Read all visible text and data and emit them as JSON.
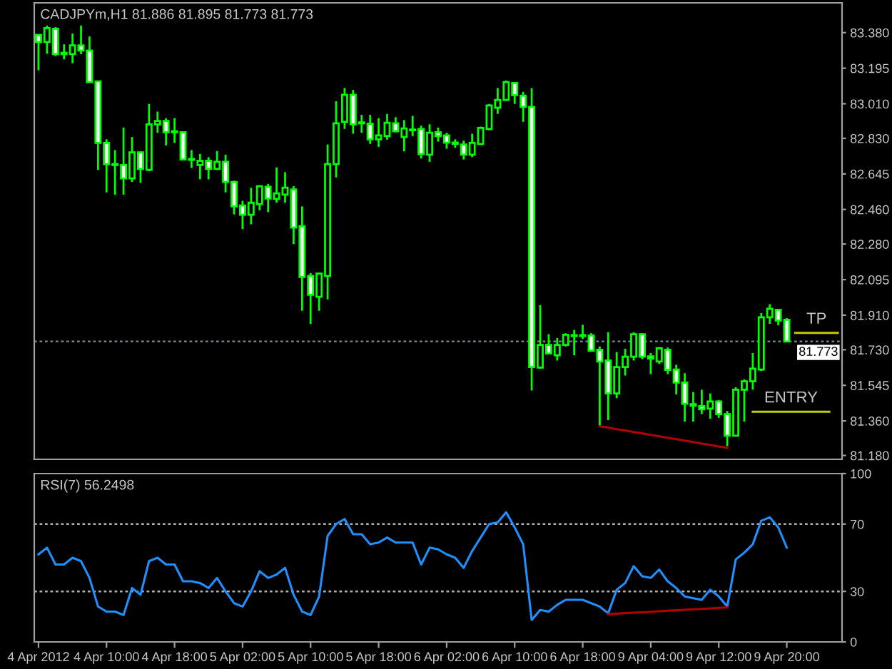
{
  "chart_data": [
    {
      "type": "candlestick",
      "title": "CADJPYm,H1 81.886 81.895 81.773 81.773",
      "categories": [
        null,
        null,
        null,
        null,
        null,
        null,
        null,
        null,
        null,
        null,
        null,
        null,
        null,
        null,
        null,
        null,
        null,
        null,
        null,
        null,
        null,
        null,
        null,
        null,
        null,
        null,
        null,
        null,
        null,
        null,
        null,
        null,
        null,
        null,
        null,
        null,
        null,
        null,
        null,
        null,
        null,
        null,
        null,
        null,
        null,
        null,
        null,
        null,
        null,
        null,
        null,
        null,
        null,
        null,
        null,
        null,
        null,
        null,
        null,
        null,
        null,
        null,
        null,
        null,
        null,
        null,
        null,
        null,
        null,
        null,
        null,
        null,
        null,
        null,
        null,
        null,
        null,
        null,
        null,
        null,
        null,
        null,
        null,
        null,
        null,
        null,
        null,
        null,
        null,
        null,
        null,
        null,
        null,
        null,
        null
      ],
      "ohlc": [
        [
          83.368,
          83.37,
          83.184,
          83.331
        ],
        [
          83.331,
          83.417,
          83.27,
          83.404
        ],
        [
          83.4,
          83.409,
          83.258,
          83.268
        ],
        [
          83.275,
          83.319,
          83.241,
          83.268
        ],
        [
          83.268,
          83.375,
          83.221,
          83.314
        ],
        [
          83.314,
          83.417,
          83.268,
          83.287
        ],
        [
          83.287,
          83.36,
          83.123,
          83.123
        ],
        [
          83.126,
          83.131,
          82.666,
          82.806
        ],
        [
          82.806,
          82.825,
          82.549,
          82.696
        ],
        [
          82.696,
          82.769,
          82.537,
          82.691
        ],
        [
          82.691,
          82.886,
          82.537,
          82.622
        ],
        [
          82.622,
          82.837,
          82.603,
          82.757
        ],
        [
          82.757,
          82.762,
          82.598,
          82.671
        ],
        [
          82.666,
          83.009,
          82.659,
          82.903
        ],
        [
          82.903,
          82.969,
          82.859,
          82.92
        ],
        [
          82.92,
          82.935,
          82.793,
          82.862
        ],
        [
          82.867,
          82.935,
          82.806,
          82.862
        ],
        [
          82.862,
          82.867,
          82.715,
          82.72
        ],
        [
          82.723,
          82.769,
          82.676,
          82.718
        ],
        [
          82.691,
          82.749,
          82.617,
          82.713
        ],
        [
          82.713,
          82.732,
          82.617,
          82.671
        ],
        [
          82.671,
          82.764,
          82.666,
          82.708
        ],
        [
          82.708,
          82.745,
          82.549,
          82.603
        ],
        [
          82.603,
          82.61,
          82.434,
          82.476
        ],
        [
          82.481,
          82.505,
          82.358,
          82.432
        ],
        [
          82.432,
          82.573,
          82.383,
          82.495
        ],
        [
          82.488,
          82.586,
          82.456,
          82.581
        ],
        [
          82.578,
          82.593,
          82.446,
          82.517
        ],
        [
          82.515,
          82.679,
          82.495,
          82.544
        ],
        [
          82.537,
          82.654,
          82.495,
          82.573
        ],
        [
          82.564,
          82.581,
          82.28,
          82.366
        ],
        [
          82.373,
          82.476,
          81.933,
          82.109
        ],
        [
          82.114,
          82.129,
          81.865,
          82.016
        ],
        [
          82.006,
          82.131,
          81.933,
          82.126
        ],
        [
          82.114,
          82.798,
          81.992,
          82.696
        ],
        [
          82.696,
          83.023,
          82.627,
          82.908
        ],
        [
          82.916,
          83.092,
          82.879,
          83.057
        ],
        [
          83.057,
          83.082,
          82.854,
          82.903
        ],
        [
          82.913,
          82.952,
          82.859,
          82.908
        ],
        [
          82.906,
          82.952,
          82.801,
          82.825
        ],
        [
          82.825,
          82.935,
          82.786,
          82.845
        ],
        [
          82.842,
          82.957,
          82.823,
          82.911
        ],
        [
          82.908,
          82.94,
          82.862,
          82.867
        ],
        [
          82.837,
          82.925,
          82.762,
          82.881
        ],
        [
          82.876,
          82.947,
          82.842,
          82.872
        ],
        [
          82.879,
          82.896,
          82.725,
          82.749
        ],
        [
          82.745,
          82.903,
          82.708,
          82.859
        ],
        [
          82.862,
          82.886,
          82.813,
          82.842
        ],
        [
          82.845,
          82.859,
          82.776,
          82.808
        ],
        [
          82.808,
          82.825,
          82.781,
          82.801
        ],
        [
          82.798,
          82.818,
          82.72,
          82.745
        ],
        [
          82.745,
          82.854,
          82.732,
          82.806
        ],
        [
          82.801,
          82.891,
          82.798,
          82.884
        ],
        [
          82.879,
          83.009,
          82.872,
          83.001
        ],
        [
          82.989,
          83.092,
          82.957,
          83.03
        ],
        [
          83.03,
          83.131,
          83.026,
          83.123
        ],
        [
          83.118,
          83.123,
          83.009,
          83.055
        ],
        [
          83.052,
          83.072,
          82.916,
          82.994
        ],
        [
          82.994,
          83.092,
          81.518,
          81.64
        ],
        [
          81.637,
          81.962,
          81.632,
          81.755
        ],
        [
          81.755,
          81.811,
          81.706,
          81.711
        ],
        [
          81.701,
          81.791,
          81.674,
          81.755
        ],
        [
          81.755,
          81.816,
          81.747,
          81.808
        ],
        [
          81.806,
          81.833,
          81.701,
          81.801
        ],
        [
          81.806,
          81.86,
          81.786,
          81.801
        ],
        [
          81.804,
          81.816,
          81.723,
          81.725
        ],
        [
          81.73,
          81.747,
          81.332,
          81.669
        ],
        [
          81.674,
          81.821,
          81.364,
          81.503
        ],
        [
          81.503,
          81.718,
          81.478,
          81.64
        ],
        [
          81.64,
          81.735,
          81.596,
          81.694
        ],
        [
          81.694,
          81.821,
          81.674,
          81.811
        ],
        [
          81.811,
          81.816,
          81.681,
          81.694
        ],
        [
          81.696,
          81.713,
          81.603,
          81.684
        ],
        [
          81.669,
          81.742,
          81.657,
          81.738
        ],
        [
          81.73,
          81.742,
          81.603,
          81.625
        ],
        [
          81.627,
          81.652,
          81.498,
          81.559
        ],
        [
          81.559,
          81.608,
          81.356,
          81.449
        ],
        [
          81.447,
          81.51,
          81.356,
          81.439
        ],
        [
          81.437,
          81.522,
          81.395,
          81.42
        ],
        [
          81.424,
          81.503,
          81.371,
          81.461
        ],
        [
          81.461,
          81.469,
          81.376,
          81.395
        ],
        [
          81.395,
          81.412,
          81.229,
          81.283
        ],
        [
          81.283,
          81.535,
          81.278,
          81.522
        ],
        [
          81.522,
          81.576,
          81.356,
          81.566
        ],
        [
          81.566,
          81.713,
          81.522,
          81.632
        ],
        [
          81.627,
          81.921,
          81.62,
          81.899
        ],
        [
          81.899,
          81.967,
          81.865,
          81.943
        ],
        [
          81.938,
          81.943,
          81.857,
          81.882
        ],
        [
          81.886,
          81.895,
          81.773,
          81.773
        ],
        null,
        null,
        null,
        null,
        null,
        null
      ],
      "color": "#00ff00",
      "colors": [
        "#ffffff",
        "#000000",
        "#ffffff",
        "#ffffff",
        "#000000",
        "#ffffff",
        "#ffffff",
        "#ffffff",
        "#ffffff",
        "#ffffff",
        "#ffffff",
        "#000000",
        "#ffffff",
        "#000000",
        "#000000",
        "#ffffff",
        "#ffffff",
        "#ffffff",
        "#ffffff",
        "#000000",
        "#ffffff",
        "#000000",
        "#ffffff",
        "#ffffff",
        "#ffffff",
        "#000000",
        "#000000",
        "#ffffff",
        "#000000",
        "#000000",
        "#ffffff",
        "#ffffff",
        "#ffffff",
        "#000000",
        "#000000",
        "#000000",
        "#000000",
        "#ffffff",
        "#ffffff",
        "#ffffff",
        "#000000",
        "#000000",
        "#ffffff",
        "#000000",
        "#ffffff",
        "#ffffff",
        "#000000",
        "#ffffff",
        "#ffffff",
        "#ffffff",
        "#ffffff",
        "#000000",
        "#000000",
        "#000000",
        "#000000",
        "#000000",
        "#ffffff",
        "#ffffff",
        "#ffffff",
        "#000000",
        "#ffffff",
        "#000000",
        "#000000",
        "#ffffff",
        "#ffffff",
        "#ffffff",
        "#ffffff",
        "#ffffff",
        "#000000",
        "#000000",
        "#000000",
        "#ffffff",
        "#ffffff",
        "#000000",
        "#ffffff",
        "#ffffff",
        "#ffffff",
        "#ffffff",
        "#ffffff",
        "#000000",
        "#ffffff",
        "#ffffff",
        "#000000",
        "#000000",
        "#000000",
        "#000000",
        "#000000",
        "#ffffff",
        "#ffffff",
        null,
        null,
        null,
        null,
        null,
        null
      ],
      "ylim": [
        81.16,
        83.535
      ],
      "yticks": [
        {
          "value": 81.18,
          "label": "81.180"
        },
        {
          "value": 81.36,
          "label": "81.360"
        },
        {
          "value": 81.545,
          "label": "81.545"
        },
        {
          "value": 81.73,
          "label": "81.730"
        },
        {
          "value": 81.91,
          "label": "81.910"
        },
        {
          "value": 82.095,
          "label": "82.095"
        },
        {
          "value": 82.28,
          "label": "82.280"
        },
        {
          "value": 82.46,
          "label": "82.460"
        },
        {
          "value": 82.645,
          "label": "82.645"
        },
        {
          "value": 82.83,
          "label": "82.830"
        },
        {
          "value": 83.01,
          "label": "83.010"
        },
        {
          "value": 83.195,
          "label": "83.195"
        },
        {
          "value": 83.38,
          "label": "83.380"
        }
      ],
      "series": [
        {
          "type": "line",
          "color": "#b00000",
          "values": [
            null,
            null,
            null,
            null,
            null,
            null,
            null,
            null,
            null,
            null,
            null,
            null,
            null,
            null,
            null,
            null,
            null,
            null,
            null,
            null,
            null,
            null,
            null,
            null,
            null,
            null,
            null,
            null,
            null,
            null,
            null,
            null,
            null,
            null,
            null,
            null,
            null,
            null,
            null,
            null,
            null,
            null,
            null,
            null,
            null,
            null,
            null,
            null,
            null,
            null,
            null,
            null,
            null,
            null,
            null,
            null,
            null,
            null,
            null,
            null,
            null,
            null,
            null,
            null,
            null,
            null,
            81.332,
            81.325,
            81.317,
            81.31,
            81.302,
            81.295,
            81.287,
            81.28,
            81.272,
            81.265,
            81.257,
            81.25,
            81.242,
            81.235,
            81.227,
            81.22,
            null,
            null,
            null,
            null,
            null,
            null,
            null,
            null,
            null,
            null,
            null,
            null,
            null
          ]
        },
        {
          "type": "line",
          "name": "TP",
          "color": "#c8c800",
          "values": [
            null,
            null,
            null,
            null,
            null,
            null,
            null,
            null,
            null,
            null,
            null,
            null,
            null,
            null,
            null,
            null,
            null,
            null,
            null,
            null,
            null,
            null,
            null,
            null,
            null,
            null,
            null,
            null,
            null,
            null,
            null,
            null,
            null,
            null,
            null,
            null,
            null,
            null,
            null,
            null,
            null,
            null,
            null,
            null,
            null,
            null,
            null,
            null,
            null,
            null,
            null,
            null,
            null,
            null,
            null,
            null,
            null,
            null,
            null,
            null,
            null,
            null,
            null,
            null,
            null,
            null,
            null,
            null,
            null,
            null,
            null,
            null,
            null,
            null,
            null,
            null,
            null,
            null,
            null,
            null,
            null,
            null,
            null,
            null,
            null,
            null,
            null,
            null,
            null,
            81.818,
            81.818,
            81.818,
            81.818,
            81.818,
            81.818
          ]
        },
        {
          "type": "line",
          "name": "ENTRY",
          "color": "#c8c800",
          "values": [
            null,
            null,
            null,
            null,
            null,
            null,
            null,
            null,
            null,
            null,
            null,
            null,
            null,
            null,
            null,
            null,
            null,
            null,
            null,
            null,
            null,
            null,
            null,
            null,
            null,
            null,
            null,
            null,
            null,
            null,
            null,
            null,
            null,
            null,
            null,
            null,
            null,
            null,
            null,
            null,
            null,
            null,
            null,
            null,
            null,
            null,
            null,
            null,
            null,
            null,
            null,
            null,
            null,
            null,
            null,
            null,
            null,
            null,
            null,
            null,
            null,
            null,
            null,
            null,
            null,
            null,
            null,
            null,
            null,
            null,
            null,
            null,
            null,
            null,
            null,
            null,
            null,
            null,
            null,
            null,
            null,
            null,
            null,
            null,
            81.408,
            81.408,
            81.408,
            81.408,
            81.408,
            81.408,
            81.408,
            81.408,
            81.408,
            81.408,
            null
          ]
        }
      ],
      "ref_lines": [
        {
          "axis": "y",
          "value": 81.773,
          "label": "81.773",
          "color": "#708090",
          "line_style": "dotted"
        }
      ]
    },
    {
      "type": "line",
      "title": "RSI(7) 56.2498",
      "categories": [
        "4 Apr 2012",
        null,
        null,
        null,
        null,
        null,
        null,
        null,
        "4 Apr 10:00",
        null,
        null,
        null,
        null,
        null,
        null,
        null,
        "4 Apr 18:00",
        null,
        null,
        null,
        null,
        null,
        null,
        null,
        "5 Apr 02:00",
        null,
        null,
        null,
        null,
        null,
        null,
        null,
        "5 Apr 10:00",
        null,
        null,
        null,
        null,
        null,
        null,
        null,
        "5 Apr 18:00",
        null,
        null,
        null,
        null,
        null,
        null,
        null,
        "6 Apr 02:00",
        null,
        null,
        null,
        null,
        null,
        null,
        null,
        "6 Apr 10:00",
        null,
        null,
        null,
        null,
        null,
        null,
        null,
        "6 Apr 18:00",
        null,
        null,
        null,
        null,
        null,
        null,
        null,
        "9 Apr 04:00",
        null,
        null,
        null,
        null,
        null,
        null,
        null,
        "9 Apr 12:00",
        null,
        null,
        null,
        null,
        null,
        null,
        null,
        "9 Apr 20:00",
        null,
        null,
        null,
        null,
        null,
        null
      ],
      "ylim": [
        0,
        100
      ],
      "yticks": [
        0,
        30,
        70,
        100
      ],
      "series": [
        {
          "color": "#1e90ff",
          "values": [
            52,
            56,
            46,
            46,
            50,
            48,
            38,
            21,
            18,
            18,
            16,
            32,
            28,
            48,
            50,
            46,
            46,
            36,
            36,
            35,
            32,
            38,
            30,
            23,
            21,
            30,
            42,
            38,
            40,
            44,
            28,
            18,
            16,
            27,
            63,
            70,
            73,
            64,
            64,
            58,
            59,
            62,
            59,
            59,
            59,
            46,
            56,
            55,
            52,
            50,
            44,
            54,
            62,
            70,
            71,
            77,
            68,
            58,
            13,
            19,
            18,
            22,
            25,
            25,
            25,
            23,
            21,
            17,
            31,
            35,
            45,
            39,
            38,
            43,
            36,
            32,
            27,
            26,
            25,
            31,
            27,
            21,
            49,
            53,
            58,
            72,
            74,
            68,
            56,
            null,
            null,
            null,
            null,
            null,
            null
          ]
        },
        {
          "color": "#b00000",
          "values": [
            null,
            null,
            null,
            null,
            null,
            null,
            null,
            null,
            null,
            null,
            null,
            null,
            null,
            null,
            null,
            null,
            null,
            null,
            null,
            null,
            null,
            null,
            null,
            null,
            null,
            null,
            null,
            null,
            null,
            null,
            null,
            null,
            null,
            null,
            null,
            null,
            null,
            null,
            null,
            null,
            null,
            null,
            null,
            null,
            null,
            null,
            null,
            null,
            null,
            null,
            null,
            null,
            null,
            null,
            null,
            null,
            null,
            null,
            null,
            null,
            null,
            null,
            null,
            null,
            null,
            null,
            null,
            16.5,
            16.8,
            17.1,
            17.4,
            17.6,
            17.9,
            18.2,
            18.5,
            18.8,
            19.1,
            19.4,
            19.6,
            19.9,
            20.2,
            20.5,
            null,
            null,
            null,
            null,
            null,
            null,
            null,
            null,
            null,
            null,
            null,
            null,
            null
          ]
        }
      ],
      "ref_lines": [
        {
          "axis": "y",
          "value": 70,
          "color": "#b0b0b0",
          "line_style": "dotted"
        },
        {
          "axis": "y",
          "value": 30,
          "color": "#b0b0b0",
          "line_style": "dotted"
        }
      ]
    }
  ]
}
